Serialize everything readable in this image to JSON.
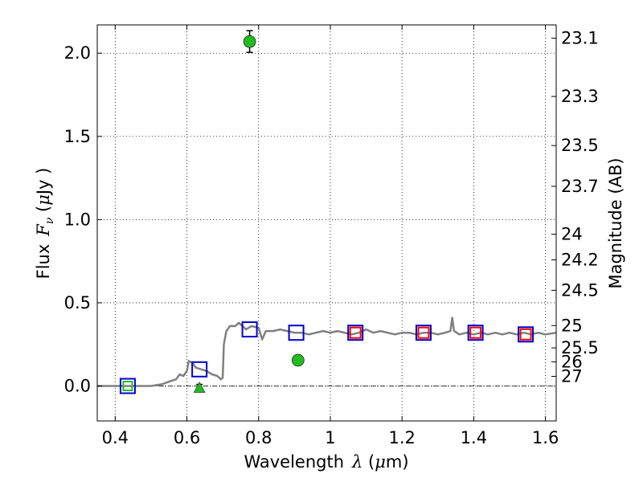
{
  "chart_data": {
    "type": "scatter",
    "xlabel_prefix": "Wavelength",
    "xlabel_lambda": "λ",
    "xlabel_unit_open": " (",
    "xlabel_unit_mu": "μ",
    "xlabel_unit_rest": "m)",
    "ylabel_prefix": "Flux",
    "ylabel_F": "F",
    "ylabel_nu": "ν",
    "ylabel_unit_open": "  (",
    "ylabel_unit_mu": "μ",
    "ylabel_unit_rest": "Jy )",
    "y2label": "Magnitude (AB)",
    "xlim": [
      0.35,
      1.63
    ],
    "ylim": [
      -0.21,
      2.17
    ],
    "grid": true,
    "x_ticks": [
      {
        "v": 0.4,
        "label": "0.4"
      },
      {
        "v": 0.6,
        "label": "0.6"
      },
      {
        "v": 0.8,
        "label": "0.8"
      },
      {
        "v": 1.0,
        "label": "1"
      },
      {
        "v": 1.2,
        "label": "1.2"
      },
      {
        "v": 1.4,
        "label": "1.4"
      },
      {
        "v": 1.6,
        "label": "1.6"
      }
    ],
    "y_ticks": [
      {
        "v": 0.0,
        "label": "0.0"
      },
      {
        "v": 0.5,
        "label": "0.5"
      },
      {
        "v": 1.0,
        "label": "1.0"
      },
      {
        "v": 1.5,
        "label": "1.5"
      },
      {
        "v": 2.0,
        "label": "2.0"
      }
    ],
    "mag_ticks": [
      {
        "label": "23.1",
        "flux": 2.09
      },
      {
        "label": "23.3",
        "flux": 1.74
      },
      {
        "label": "23.5",
        "flux": 1.445
      },
      {
        "label": "23.7",
        "flux": 1.2
      },
      {
        "label": "24",
        "flux": 0.912
      },
      {
        "label": "24.2",
        "flux": 0.758
      },
      {
        "label": "24.5",
        "flux": 0.575
      },
      {
        "label": "25",
        "flux": 0.363
      },
      {
        "label": "25.5",
        "flux": 0.229
      },
      {
        "label": "26",
        "flux": 0.145
      },
      {
        "label": "27",
        "flux": 0.058
      }
    ],
    "model_sed": [
      [
        0.35,
        0.0
      ],
      [
        0.5,
        0.0
      ],
      [
        0.53,
        0.01
      ],
      [
        0.555,
        0.03
      ],
      [
        0.57,
        0.04
      ],
      [
        0.58,
        0.07
      ],
      [
        0.59,
        0.06
      ],
      [
        0.6,
        0.09
      ],
      [
        0.605,
        0.15
      ],
      [
        0.615,
        0.14
      ],
      [
        0.625,
        0.11
      ],
      [
        0.64,
        0.1
      ],
      [
        0.655,
        0.09
      ],
      [
        0.67,
        0.07
      ],
      [
        0.685,
        0.06
      ],
      [
        0.695,
        0.04
      ],
      [
        0.7,
        0.05
      ],
      [
        0.703,
        0.25
      ],
      [
        0.71,
        0.33
      ],
      [
        0.72,
        0.36
      ],
      [
        0.735,
        0.36
      ],
      [
        0.745,
        0.38
      ],
      [
        0.755,
        0.36
      ],
      [
        0.765,
        0.34
      ],
      [
        0.78,
        0.36
      ],
      [
        0.8,
        0.35
      ],
      [
        0.81,
        0.28
      ],
      [
        0.82,
        0.33
      ],
      [
        0.84,
        0.33
      ],
      [
        0.86,
        0.34
      ],
      [
        0.88,
        0.33
      ],
      [
        0.9,
        0.32
      ],
      [
        0.92,
        0.32
      ],
      [
        0.94,
        0.31
      ],
      [
        0.96,
        0.32
      ],
      [
        0.98,
        0.33
      ],
      [
        1.0,
        0.32
      ],
      [
        1.02,
        0.33
      ],
      [
        1.04,
        0.32
      ],
      [
        1.06,
        0.31
      ],
      [
        1.08,
        0.32
      ],
      [
        1.1,
        0.34
      ],
      [
        1.12,
        0.32
      ],
      [
        1.14,
        0.33
      ],
      [
        1.16,
        0.32
      ],
      [
        1.18,
        0.31
      ],
      [
        1.2,
        0.32
      ],
      [
        1.22,
        0.32
      ],
      [
        1.24,
        0.31
      ],
      [
        1.26,
        0.32
      ],
      [
        1.28,
        0.32
      ],
      [
        1.3,
        0.31
      ],
      [
        1.32,
        0.32
      ],
      [
        1.335,
        0.33
      ],
      [
        1.34,
        0.41
      ],
      [
        1.345,
        0.33
      ],
      [
        1.36,
        0.31
      ],
      [
        1.38,
        0.32
      ],
      [
        1.4,
        0.31
      ],
      [
        1.42,
        0.32
      ],
      [
        1.44,
        0.31
      ],
      [
        1.46,
        0.32
      ],
      [
        1.48,
        0.31
      ],
      [
        1.5,
        0.32
      ],
      [
        1.52,
        0.31
      ],
      [
        1.54,
        0.32
      ],
      [
        1.56,
        0.31
      ],
      [
        1.58,
        0.32
      ],
      [
        1.6,
        0.31
      ],
      [
        1.63,
        0.32
      ]
    ],
    "model_color": "#808080",
    "blue_squares": [
      {
        "x": 0.435,
        "y": 0.0
      },
      {
        "x": 0.635,
        "y": 0.1
      },
      {
        "x": 0.775,
        "y": 0.34
      },
      {
        "x": 0.905,
        "y": 0.32
      },
      {
        "x": 1.07,
        "y": 0.32
      },
      {
        "x": 1.26,
        "y": 0.32
      },
      {
        "x": 1.405,
        "y": 0.32
      },
      {
        "x": 1.545,
        "y": 0.31
      }
    ],
    "red_squares": [
      {
        "x": 1.07,
        "y": 0.32
      },
      {
        "x": 1.26,
        "y": 0.32
      },
      {
        "x": 1.405,
        "y": 0.32
      },
      {
        "x": 1.545,
        "y": 0.31
      }
    ],
    "green_square": {
      "x": 0.435,
      "y": 0.0
    },
    "detections": [
      {
        "x": 0.775,
        "y": 2.07,
        "err": 0.065
      },
      {
        "x": 0.91,
        "y": 0.155,
        "err": 0.03
      }
    ],
    "upper_limit": {
      "x": 0.635,
      "y": -0.005
    },
    "colors": {
      "blue": "#0000cc",
      "red": "#ff0000",
      "green": "#22bb22",
      "grid": "#000000"
    }
  }
}
